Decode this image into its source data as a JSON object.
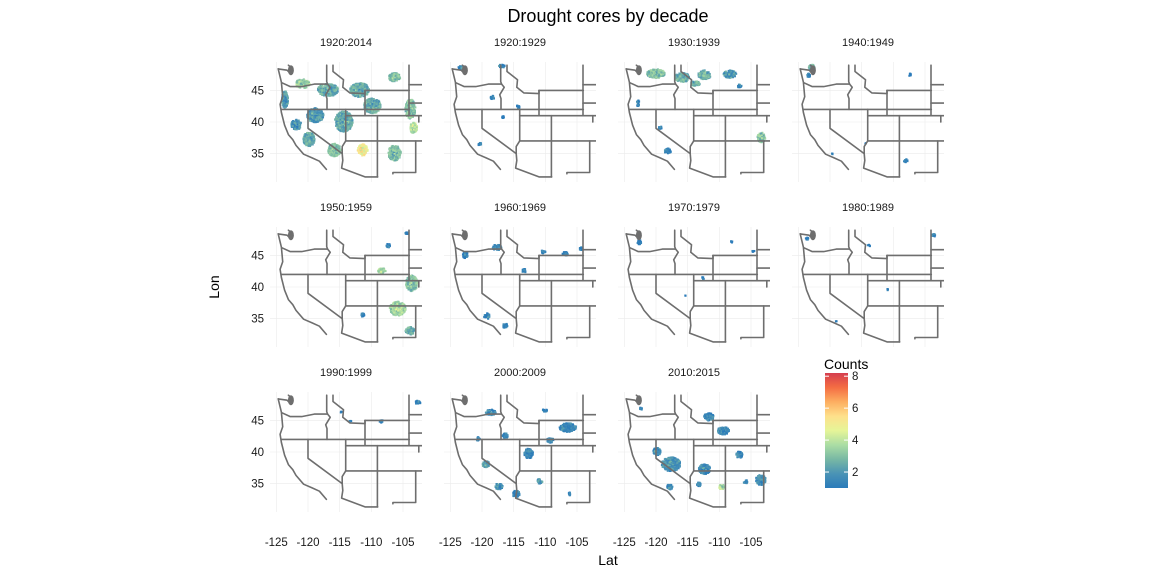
{
  "chart_data": {
    "type": "heatmap",
    "title": "Drought cores by decade",
    "xlabel": "Lat",
    "ylabel": "Lon",
    "xlim": [
      -126,
      -102
    ],
    "ylim": [
      30.5,
      49.5
    ],
    "x_ticks": [
      -125,
      -120,
      -115,
      -110,
      -105
    ],
    "x_tick_labels": [
      "-125",
      "-120",
      "-115",
      "-110",
      "-105"
    ],
    "y_ticks": [
      35,
      40,
      45
    ],
    "y_tick_labels": [
      "35",
      "40",
      "45"
    ],
    "grid": true,
    "facets": [
      "1920:2014",
      "1920:1929",
      "1930:1939",
      "1940:1949",
      "1950:1959",
      "1960:1969",
      "1970:1979",
      "1980:1989",
      "1990:1999",
      "2000:2009",
      "2010:2015"
    ],
    "panel_layout": {
      "columns": 4,
      "rows": 3
    },
    "legend": {
      "title": "Counts",
      "placement": "right (in empty fourth cell of bottom row)",
      "ticks": [
        2,
        4,
        6,
        8
      ],
      "tick_labels": [
        "2",
        "4",
        "6",
        "8"
      ],
      "range": [
        1,
        8.2
      ]
    },
    "colorscale": [
      "#2b7bba",
      "#4a93b5",
      "#78b8a4",
      "#abdda4",
      "#e6f598",
      "#fee08b",
      "#fdae61",
      "#f46d43",
      "#d53e4f"
    ],
    "clusters": [
      [
        [
          -121,
          46,
          2.2,
          1.4,
          3.5
        ],
        [
          -117,
          45,
          3.2,
          2,
          2.5
        ],
        [
          -112,
          45,
          3,
          2.2,
          2.5
        ],
        [
          -106.5,
          47,
          1.8,
          1.4,
          3
        ],
        [
          -123.8,
          43.5,
          1,
          2.6,
          2
        ],
        [
          -119,
          41,
          2.6,
          2.2,
          2
        ],
        [
          -114.5,
          40,
          2.8,
          3.2,
          2.5
        ],
        [
          -110,
          42.5,
          2.6,
          2.4,
          2.5
        ],
        [
          -104,
          42,
          1.6,
          3,
          3
        ],
        [
          -120,
          37.2,
          1.8,
          2.2,
          2.5
        ],
        [
          -116,
          35.5,
          2,
          2,
          3
        ],
        [
          -111.5,
          35.5,
          1.6,
          1.8,
          5
        ],
        [
          -106.5,
          35,
          2,
          2.4,
          3
        ],
        [
          -103.5,
          39,
          1.2,
          1.6,
          4
        ],
        [
          -122,
          39.5,
          1.6,
          1.6,
          2
        ]
      ],
      [
        [
          -123.5,
          48.5,
          0.8,
          0.6,
          1.5
        ],
        [
          -117,
          48.8,
          1,
          0.5,
          1.5
        ],
        [
          -118.5,
          43.8,
          0.6,
          0.6,
          1.2
        ],
        [
          -114.5,
          42.3,
          0.6,
          0.5,
          1.2
        ],
        [
          -116.8,
          40.7,
          0.4,
          0.4,
          1
        ],
        [
          -120.5,
          36.4,
          0.5,
          0.5,
          1.2
        ]
      ],
      [
        [
          -120.2,
          47.6,
          2.8,
          1.4,
          3
        ],
        [
          -116,
          47,
          2.2,
          1.5,
          2.5
        ],
        [
          -112.5,
          47.4,
          2,
          1.4,
          2.5
        ],
        [
          -108.5,
          47.5,
          2,
          1.2,
          2
        ],
        [
          -114,
          46,
          1.6,
          0.8,
          2.5
        ],
        [
          -107,
          45.6,
          0.7,
          0.5,
          1.5
        ],
        [
          -118.3,
          35.3,
          1,
          0.9,
          1.5
        ],
        [
          -103.5,
          37.5,
          1.2,
          1.6,
          3
        ],
        [
          -119.5,
          39,
          0.5,
          0.5,
          1.2
        ],
        [
          -123,
          43,
          0.4,
          1.2,
          1.2
        ]
      ],
      [
        [
          -123,
          48.6,
          1,
          0.8,
          2.5
        ],
        [
          -123.5,
          47.3,
          0.5,
          0.6,
          1.2
        ],
        [
          -107.5,
          47.4,
          0.4,
          0.4,
          1
        ],
        [
          -119.8,
          34.9,
          0.3,
          0.3,
          1
        ],
        [
          -108.2,
          33.8,
          0.6,
          0.5,
          1.2
        ],
        [
          -114.5,
          36.5,
          0.2,
          0.2,
          1
        ]
      ],
      [
        [
          -108.5,
          42.5,
          1.2,
          0.8,
          3.5
        ],
        [
          -103.8,
          40.5,
          1.8,
          2.5,
          3
        ],
        [
          -106,
          36.5,
          2.5,
          2.2,
          3.5
        ],
        [
          -104,
          33,
          1.5,
          1.2,
          2.5
        ],
        [
          -107.5,
          46.5,
          0.6,
          0.6,
          1.2
        ],
        [
          -111.5,
          35.5,
          0.5,
          0.6,
          1.2
        ],
        [
          -104.5,
          48.4,
          0.6,
          0.4,
          1.2
        ]
      ],
      [
        [
          -117.8,
          46.2,
          1.4,
          0.9,
          1.5
        ],
        [
          -122.8,
          45,
          0.8,
          1,
          1.2
        ],
        [
          -119.4,
          35.3,
          0.9,
          1,
          1.5
        ],
        [
          -116.5,
          33.8,
          0.7,
          0.8,
          1.2
        ],
        [
          -107,
          45.2,
          1,
          0.6,
          1.2
        ],
        [
          -110.5,
          45.5,
          0.7,
          0.5,
          1.2
        ],
        [
          -113.5,
          42.5,
          0.6,
          0.6,
          1.2
        ],
        [
          -104.5,
          46,
          0.5,
          0.5,
          1.2
        ]
      ],
      [
        [
          -122.8,
          47,
          0.6,
          0.7,
          1.2
        ],
        [
          -108.2,
          47.1,
          0.3,
          0.3,
          1
        ],
        [
          -112.8,
          41.3,
          0.4,
          0.4,
          1
        ],
        [
          -104.8,
          45.6,
          0.4,
          0.4,
          1
        ],
        [
          -115.5,
          38.5,
          0.2,
          0.2,
          1
        ]
      ],
      [
        [
          -103.8,
          48.1,
          0.7,
          0.5,
          1.3
        ],
        [
          -123.8,
          47.6,
          0.5,
          0.4,
          1
        ],
        [
          -114,
          46.5,
          0.4,
          0.3,
          1
        ],
        [
          -111,
          39.5,
          0.3,
          0.3,
          1
        ],
        [
          -119.2,
          34.5,
          0.2,
          0.2,
          1
        ]
      ],
      [
        [
          -102.8,
          47.8,
          0.8,
          0.7,
          1.2
        ],
        [
          -108.6,
          44.8,
          0.5,
          0.5,
          1.2
        ],
        [
          -115,
          46.3,
          0.3,
          0.3,
          1
        ],
        [
          -113.5,
          44.8,
          0.4,
          0.3,
          1
        ]
      ],
      [
        [
          -118.8,
          46.2,
          1.6,
          0.9,
          1.5
        ],
        [
          -106.6,
          43.8,
          2.6,
          1.4,
          1.5
        ],
        [
          -116.5,
          42.5,
          1,
          0.8,
          1.3
        ],
        [
          -112.8,
          39.7,
          1.4,
          1.6,
          1.4
        ],
        [
          -119.5,
          38,
          1.2,
          1,
          2.2
        ],
        [
          -117.5,
          34.5,
          1.2,
          1,
          1.8
        ],
        [
          -114.8,
          33.3,
          1.2,
          1,
          1.6
        ],
        [
          -109.4,
          41.8,
          1,
          0.8,
          1.4
        ],
        [
          -111,
          35.3,
          0.8,
          0.8,
          2
        ],
        [
          -106.3,
          33.3,
          0.5,
          0.5,
          1.2
        ],
        [
          -110.3,
          46.5,
          0.8,
          0.4,
          1.4
        ],
        [
          -120.8,
          42,
          0.6,
          0.6,
          1.2
        ]
      ],
      [
        [
          -117.8,
          38,
          3,
          2.2,
          1.8
        ],
        [
          -120,
          40,
          1.2,
          1.2,
          1.6
        ],
        [
          -112.5,
          37.2,
          1.8,
          1.6,
          1.5
        ],
        [
          -109.5,
          43.3,
          1.8,
          1.2,
          1.5
        ],
        [
          -111.8,
          45.5,
          1.5,
          1.2,
          1.5
        ],
        [
          -103.6,
          35.5,
          1.6,
          1.6,
          1.6
        ],
        [
          -109.8,
          34.4,
          0.9,
          0.7,
          3.8
        ],
        [
          -118,
          34.4,
          0.9,
          0.8,
          1.6
        ],
        [
          -113.4,
          34.8,
          0.7,
          0.6,
          1.4
        ],
        [
          -107,
          39.5,
          1,
          1,
          1.4
        ],
        [
          -106,
          35.2,
          0.6,
          0.6,
          1.3
        ],
        [
          -122.5,
          46.8,
          0.5,
          0.4,
          1.2
        ]
      ]
    ]
  }
}
